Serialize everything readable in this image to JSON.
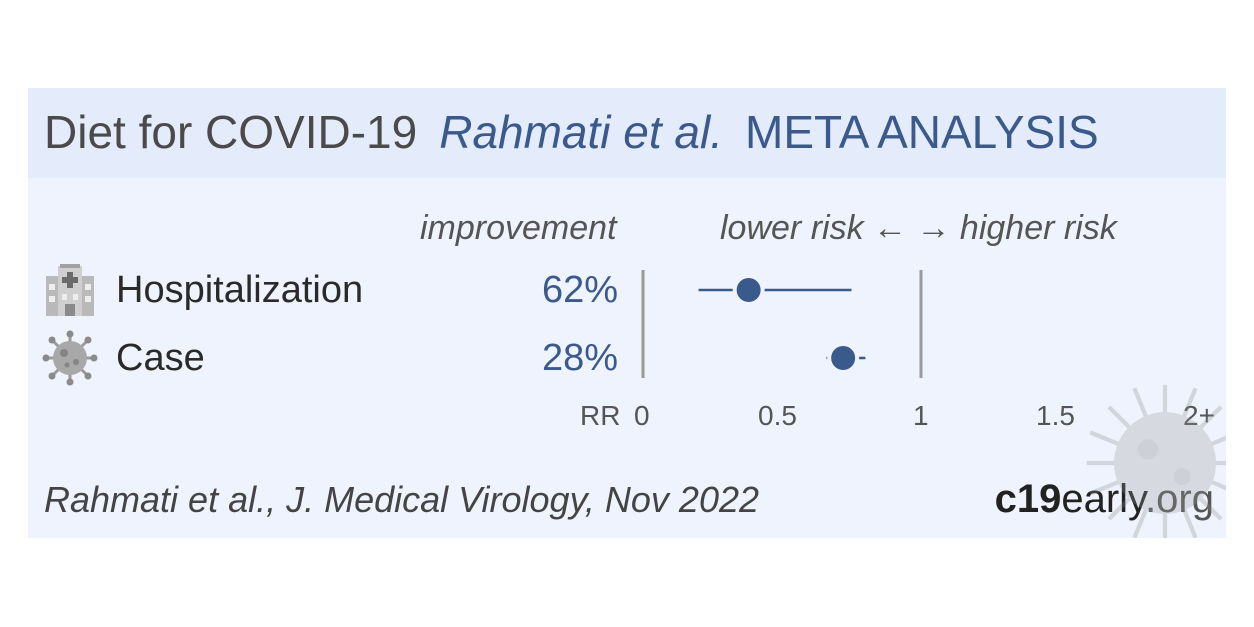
{
  "header": {
    "topic": "Diet for COVID-19",
    "authors": "Rahmati et al.",
    "kind": "META ANALYSIS"
  },
  "columns": {
    "improvement": "improvement",
    "direction": "lower risk ← → higher risk"
  },
  "rows": [
    {
      "label": "Hospitalization",
      "improvement": "62%",
      "icon": "hospital-icon"
    },
    {
      "label": "Case",
      "improvement": "28%",
      "icon": "virus-icon"
    }
  ],
  "footer": {
    "citation": "Rahmati et al., J. Medical Virology, Nov 2022",
    "brand_bold": "c19",
    "brand_mid": "early",
    "brand_end": ".org"
  },
  "colors": {
    "accent": "#3b5a8c",
    "marker": "#3b5a8c",
    "header_bg": "#e4ebfa",
    "card_bg": "#eff3fd"
  },
  "chart_data": {
    "type": "forest",
    "x_axis_title": "RR",
    "x_ticks": [
      "0",
      "0.5",
      "1",
      "1.5",
      "2+"
    ],
    "x_tick_values": [
      0,
      0.5,
      1,
      1.5,
      2
    ],
    "xlim": [
      0,
      2
    ],
    "reference_line": 1,
    "series": [
      {
        "name": "Hospitalization",
        "rr": 0.38,
        "ci_low": 0.2,
        "ci_high": 0.75
      },
      {
        "name": "Case",
        "rr": 0.72,
        "ci_low": 0.66,
        "ci_high": 0.8
      }
    ]
  }
}
